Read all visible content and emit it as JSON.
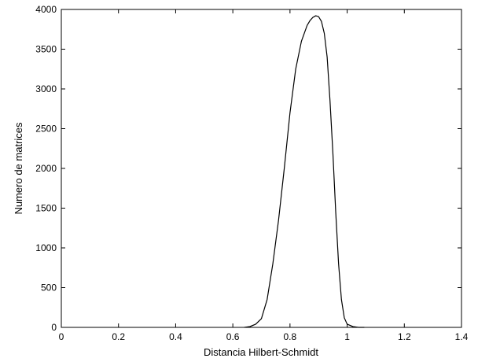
{
  "chart_data": {
    "type": "line",
    "title": "",
    "xlabel": "Distancia Hilbert-Schmidt",
    "ylabel": "Numero de matrices",
    "xlim": [
      0,
      1.4
    ],
    "ylim": [
      0,
      4000
    ],
    "xticks": [
      0,
      0.2,
      0.4,
      0.6,
      0.8,
      1,
      1.2,
      1.4
    ],
    "xtick_labels": [
      "0",
      "0.2",
      "0.4",
      "0.6",
      "0.8",
      "1",
      "1.2",
      "1.4"
    ],
    "yticks": [
      0,
      500,
      1000,
      1500,
      2000,
      2500,
      3000,
      3500,
      4000
    ],
    "ytick_labels": [
      "0",
      "500",
      "1000",
      "1500",
      "2000",
      "2500",
      "3000",
      "3500",
      "4000"
    ],
    "grid": false,
    "legend": "none",
    "line_color": "#000000",
    "series": [
      {
        "x": [
          0.64,
          0.66,
          0.68,
          0.7,
          0.72,
          0.74,
          0.76,
          0.78,
          0.8,
          0.82,
          0.84,
          0.86,
          0.87,
          0.88,
          0.89,
          0.9,
          0.91,
          0.92,
          0.93,
          0.94,
          0.95,
          0.96,
          0.97,
          0.98,
          0.99,
          1.0,
          1.02,
          1.04,
          1.06
        ],
        "y": [
          0,
          10,
          40,
          110,
          350,
          800,
          1350,
          2000,
          2700,
          3250,
          3600,
          3800,
          3860,
          3900,
          3920,
          3910,
          3850,
          3700,
          3400,
          2850,
          2200,
          1450,
          800,
          350,
          120,
          40,
          10,
          0,
          0
        ]
      }
    ]
  }
}
